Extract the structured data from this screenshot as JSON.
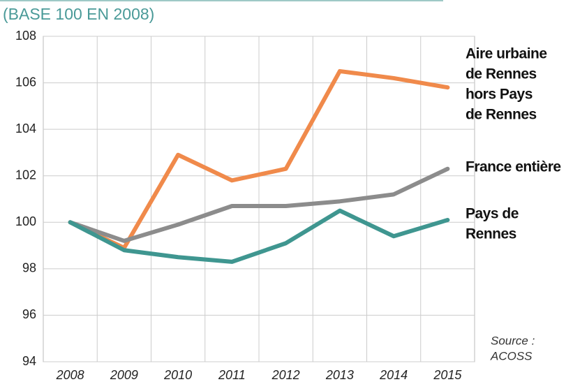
{
  "chart_data": {
    "type": "line",
    "title": "(BASE 100 EN 2008)",
    "categories": [
      "2008",
      "2009",
      "2010",
      "2011",
      "2012",
      "2013",
      "2014",
      "2015"
    ],
    "series": [
      {
        "name": [
          "Aire urbaine",
          "de Rennes",
          "hors Pays",
          "de Rennes"
        ],
        "color": "#f08a4b",
        "values": [
          100,
          98.9,
          102.9,
          101.8,
          102.3,
          106.5,
          106.2,
          105.8
        ]
      },
      {
        "name": [
          "France entière"
        ],
        "color": "#8c8c8c",
        "values": [
          100,
          99.2,
          99.9,
          100.7,
          100.7,
          100.9,
          101.2,
          102.3
        ]
      },
      {
        "name": [
          "Pays de",
          "Rennes"
        ],
        "color": "#3f9690",
        "values": [
          100,
          98.8,
          98.5,
          98.3,
          99.1,
          100.5,
          99.4,
          100.1
        ]
      }
    ],
    "ylim": [
      94,
      108
    ],
    "yticks": [
      94,
      96,
      98,
      100,
      102,
      104,
      106,
      108
    ],
    "grid": true,
    "source": [
      "Source :",
      "ACOSS"
    ]
  }
}
